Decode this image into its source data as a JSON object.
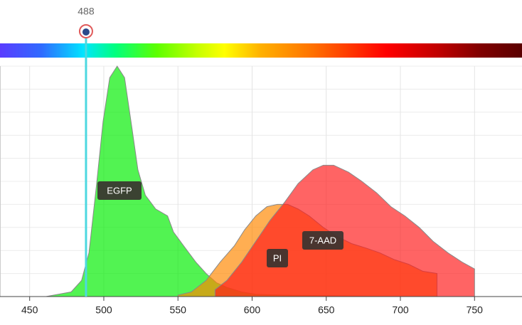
{
  "chart_data": {
    "type": "area",
    "laser": 488,
    "xlim": [
      430,
      782
    ],
    "ylim": [
      0,
      100
    ],
    "xticks": [
      450,
      500,
      550,
      600,
      650,
      700,
      750
    ],
    "yticks": [
      0,
      10,
      20,
      30,
      40,
      50,
      60,
      70,
      80,
      90,
      100
    ],
    "grid": true,
    "series": [
      {
        "name": "EGFP",
        "color": "#00ee00",
        "x": [
          461,
          478,
          485,
          490,
          495,
          499.5,
          504,
          509,
          514,
          519,
          523,
          528,
          535,
          543,
          547,
          555,
          562,
          569,
          576,
          583,
          593,
          602.5,
          622,
          700
        ],
        "values": [
          0,
          2,
          7,
          19,
          48,
          76,
          95,
          100,
          95,
          73,
          55,
          44,
          38,
          35,
          28,
          21,
          15,
          10,
          6,
          4,
          2,
          1,
          0.6,
          0
        ]
      },
      {
        "name": "PI",
        "color": "#ff8800",
        "x": [
          550,
          559,
          569,
          578.5,
          588,
          595,
          602.5,
          610,
          617,
          624,
          631,
          638.5,
          648,
          657.6,
          667,
          677,
          686,
          696,
          705.6,
          715,
          724.7
        ],
        "values": [
          0.6,
          2,
          7,
          15,
          22,
          29,
          35,
          39,
          40,
          40,
          38,
          35,
          30,
          26,
          23,
          21,
          19,
          16,
          14,
          11,
          10
        ]
      },
      {
        "name": "7-AAD",
        "color": "#ff1a1a",
        "x": [
          575,
          583,
          593,
          602.5,
          612,
          622,
          631,
          641,
          648,
          655,
          665,
          674,
          684,
          693.6,
          703,
          712.7,
          722,
          732,
          741.5,
          750
        ],
        "values": [
          3,
          7,
          15,
          24,
          33,
          41,
          49,
          55,
          57,
          57,
          54,
          50,
          45,
          39,
          35,
          30,
          24,
          19,
          15,
          12
        ]
      }
    ]
  }
}
